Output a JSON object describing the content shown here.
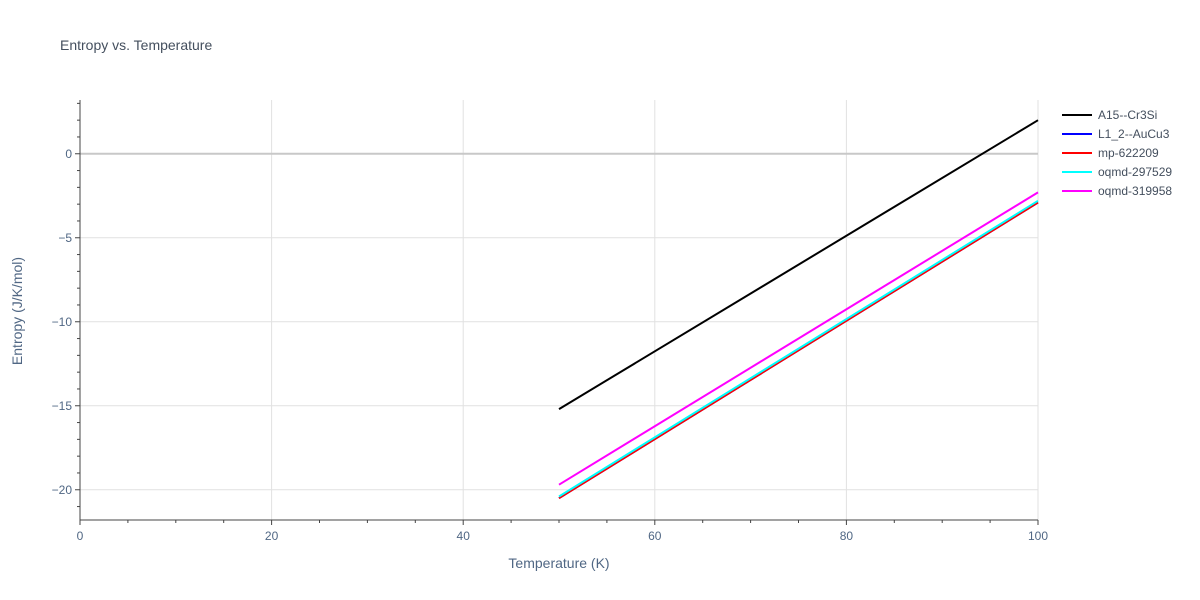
{
  "chart_data": {
    "type": "line",
    "title": "Entropy vs. Temperature",
    "xlabel": "Temperature (K)",
    "ylabel": "Entropy (J/K/mol)",
    "xlim": [
      0,
      100
    ],
    "ylim": [
      -21.8,
      3.2
    ],
    "x_ticks": [
      0,
      20,
      40,
      60,
      80,
      100
    ],
    "y_ticks": [
      -20,
      -15,
      -10,
      -5,
      0
    ],
    "x_tick_labels": [
      "0",
      "20",
      "40",
      "60",
      "80",
      "100"
    ],
    "y_tick_labels": [
      "−20",
      "−15",
      "−10",
      "−5",
      "0"
    ],
    "grid": true,
    "legend_position": "top-right",
    "series": [
      {
        "name": "A15--Cr3Si",
        "color": "#000000",
        "x": [
          50,
          100
        ],
        "y": [
          -15.2,
          2.0
        ]
      },
      {
        "name": "L1_2--AuCu3",
        "color": "#0000ff",
        "x": [
          50,
          100
        ],
        "y": [
          -20.5,
          -2.9
        ]
      },
      {
        "name": "mp-622209",
        "color": "#ff0000",
        "x": [
          50,
          100
        ],
        "y": [
          -20.5,
          -2.9
        ]
      },
      {
        "name": "oqmd-297529",
        "color": "#00ffff",
        "x": [
          50,
          100
        ],
        "y": [
          -20.4,
          -2.8
        ]
      },
      {
        "name": "oqmd-319958",
        "color": "#ff00ff",
        "x": [
          50,
          100
        ],
        "y": [
          -19.7,
          -2.3
        ]
      }
    ]
  }
}
